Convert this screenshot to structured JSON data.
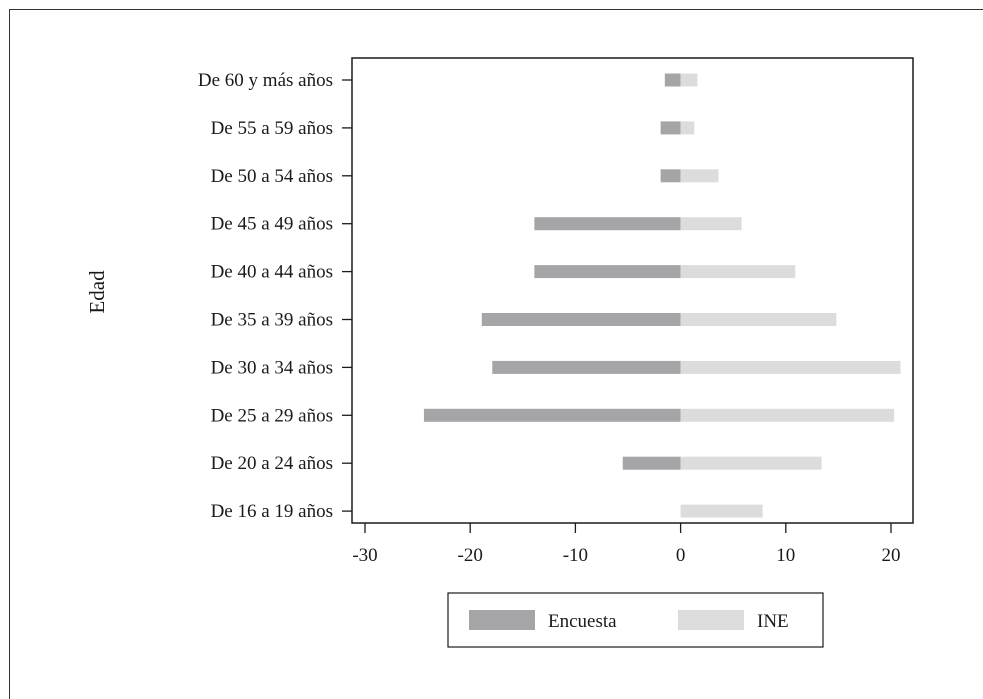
{
  "chart_data": {
    "type": "bar",
    "orientation": "horizontal",
    "ylabel": "Edad",
    "xlabel": "",
    "xlim": [
      -30,
      22
    ],
    "xticks": [
      -30,
      -20,
      -10,
      0,
      10,
      20
    ],
    "xtick_labels": [
      "-30",
      "-20",
      "-10",
      "0",
      "10",
      "20"
    ],
    "categories": [
      "De 60 y más años",
      "De 55 a 59 años",
      "De 50 a 54 años",
      "De 45 a 49 años",
      "De 40 a 44 años",
      "De 35 a 39 años",
      "De 30 a 34 años",
      "De 25 a 29 años",
      "De 20 a 24 años",
      "De 16 a 19 años"
    ],
    "series": [
      {
        "name": "Encuesta",
        "color": "#a5a5a7",
        "values": [
          -1.5,
          -1.9,
          -1.9,
          -13.9,
          -13.9,
          -18.9,
          -17.9,
          -24.4,
          -5.5,
          0
        ]
      },
      {
        "name": "INE",
        "color": "#dcdcdd",
        "values": [
          1.6,
          1.3,
          3.6,
          5.8,
          10.9,
          14.8,
          20.9,
          20.3,
          13.4,
          7.8
        ]
      }
    ],
    "legend_position": "bottom",
    "grid": false
  }
}
